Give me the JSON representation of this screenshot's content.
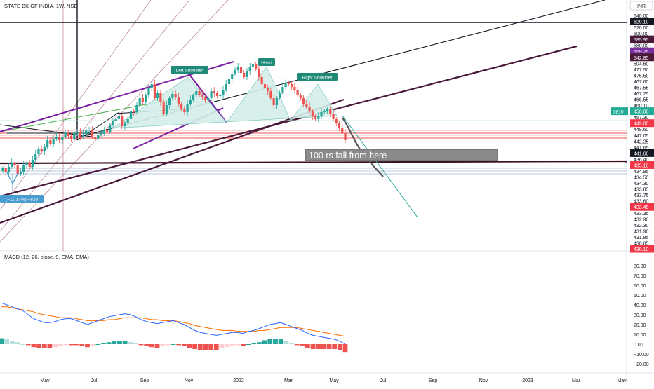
{
  "header": {
    "symbol_title": "STATE BK OF INDIA, 1W, NSE",
    "currency": "INR"
  },
  "chart_data": [
    {
      "type": "candlestick",
      "title": "STATE BK OF INDIA, 1W, NSE",
      "currency": "INR",
      "xlabels": [
        "May",
        "Jul",
        "Sep",
        "Nov",
        "2022",
        "Mar",
        "May",
        "Jul",
        "Sep",
        "Nov",
        "2023",
        "Mar",
        "May"
      ],
      "price_ticks": [
        640.0,
        629.1,
        620.0,
        600.0,
        585.95,
        580.0,
        559.25,
        542.85,
        504.6,
        477.5,
        476.5,
        467.6,
        467.55,
        467.25,
        466.55,
        460.1,
        458.0,
        457.3,
        449.0,
        448.6,
        447.05,
        442.25,
        441.65,
        441.6,
        436.4,
        435.1,
        434.95,
        434.5,
        434.3,
        433.85,
        433.75,
        433.6,
        433.45,
        433.35,
        432.9,
        432.3,
        431.9,
        431.85,
        430.85,
        430.1
      ],
      "highlighted_ticks": [
        {
          "value": "629.10",
          "color": "#131722"
        },
        {
          "value": "585.95",
          "color": "#4a1a3a"
        },
        {
          "value": "559.25",
          "color": "#7b2f9f"
        },
        {
          "value": "542.85",
          "color": "#4a1a3a"
        },
        {
          "value": "458.00",
          "color": "#22ab94",
          "extra": "5810"
        },
        {
          "value": "449.00",
          "color": "#f23645"
        },
        {
          "value": "441.60",
          "color": "#131722"
        },
        {
          "value": "435.10",
          "color": "#f23645"
        },
        {
          "value": "433.45",
          "color": "#f23645"
        },
        {
          "value": "430.10",
          "color": "#f23645"
        }
      ],
      "annotations": [
        "Left Shoulder",
        "Head",
        "Right Shoulder",
        "100 rs fall from here",
        "(−11.17%) −823"
      ],
      "pattern": "head-and-shoulders",
      "grid": false,
      "ylim": [
        200,
        646
      ]
    },
    {
      "type": "macd",
      "title": "MACD (12, 26, close, 9, EMA, EMA)",
      "yticks": [
        80.0,
        70.0,
        60.0,
        50.0,
        40.0,
        30.0,
        20.0,
        10.0,
        0.0,
        -10.0,
        -20.0
      ],
      "ylim": [
        -25,
        85
      ],
      "macd_line": [
        42,
        40,
        38,
        36,
        34,
        30,
        26,
        24,
        22,
        22,
        23,
        25,
        26,
        26,
        24,
        22,
        20,
        22,
        24,
        26,
        28,
        29,
        30,
        31,
        30,
        28,
        25,
        23,
        22,
        21,
        22,
        23,
        24,
        22,
        20,
        17,
        14,
        12,
        11,
        10,
        9,
        10,
        11,
        12,
        12,
        11,
        13,
        14,
        16,
        18,
        20,
        21,
        22,
        20,
        18,
        16,
        14,
        11,
        9,
        8,
        7,
        6,
        5,
        3,
        0
      ],
      "signal_line": [
        38,
        38,
        37,
        36,
        35,
        34,
        33,
        31,
        30,
        29,
        28,
        27,
        27,
        27,
        26,
        25,
        24,
        24,
        24,
        24,
        25,
        25,
        26,
        27,
        27,
        27,
        27,
        26,
        25,
        25,
        24,
        24,
        24,
        23,
        22,
        21,
        19,
        18,
        17,
        16,
        15,
        14,
        14,
        14,
        13,
        13,
        13,
        13,
        14,
        14,
        15,
        16,
        17,
        17,
        17,
        17,
        16,
        15,
        14,
        13,
        12,
        11,
        10,
        9,
        8
      ],
      "histogram": [
        6,
        5,
        3,
        2,
        0,
        -1,
        -3,
        -4,
        -4,
        -4,
        -3,
        -2,
        -1,
        -1,
        -1,
        -2,
        -3,
        -2,
        0,
        1,
        2,
        3,
        3,
        3,
        2,
        1,
        -1,
        -2,
        -3,
        -4,
        -2,
        -1,
        0,
        -1,
        -2,
        -4,
        -5,
        -6,
        -6,
        -6,
        -6,
        -4,
        -3,
        -2,
        -1,
        -2,
        0,
        1,
        2,
        4,
        5,
        5,
        5,
        3,
        1,
        -1,
        -2,
        -4,
        -5,
        -5,
        -5,
        -5,
        -5,
        -6,
        -8
      ]
    }
  ],
  "colors": {
    "bull": "#26a69a",
    "bear": "#ef5350",
    "macd": "#2962ff",
    "signal": "#ff6d00",
    "hist_up": "#26a69a",
    "hist_up_light": "#b2dfdb",
    "hist_down": "#ef5350",
    "hist_down_light": "#ffcdd2",
    "pattern_fill": "#d4eee9",
    "annotation": "#1f8a78",
    "purple": "#7b1fa2",
    "maroon": "#4a1a3a"
  }
}
